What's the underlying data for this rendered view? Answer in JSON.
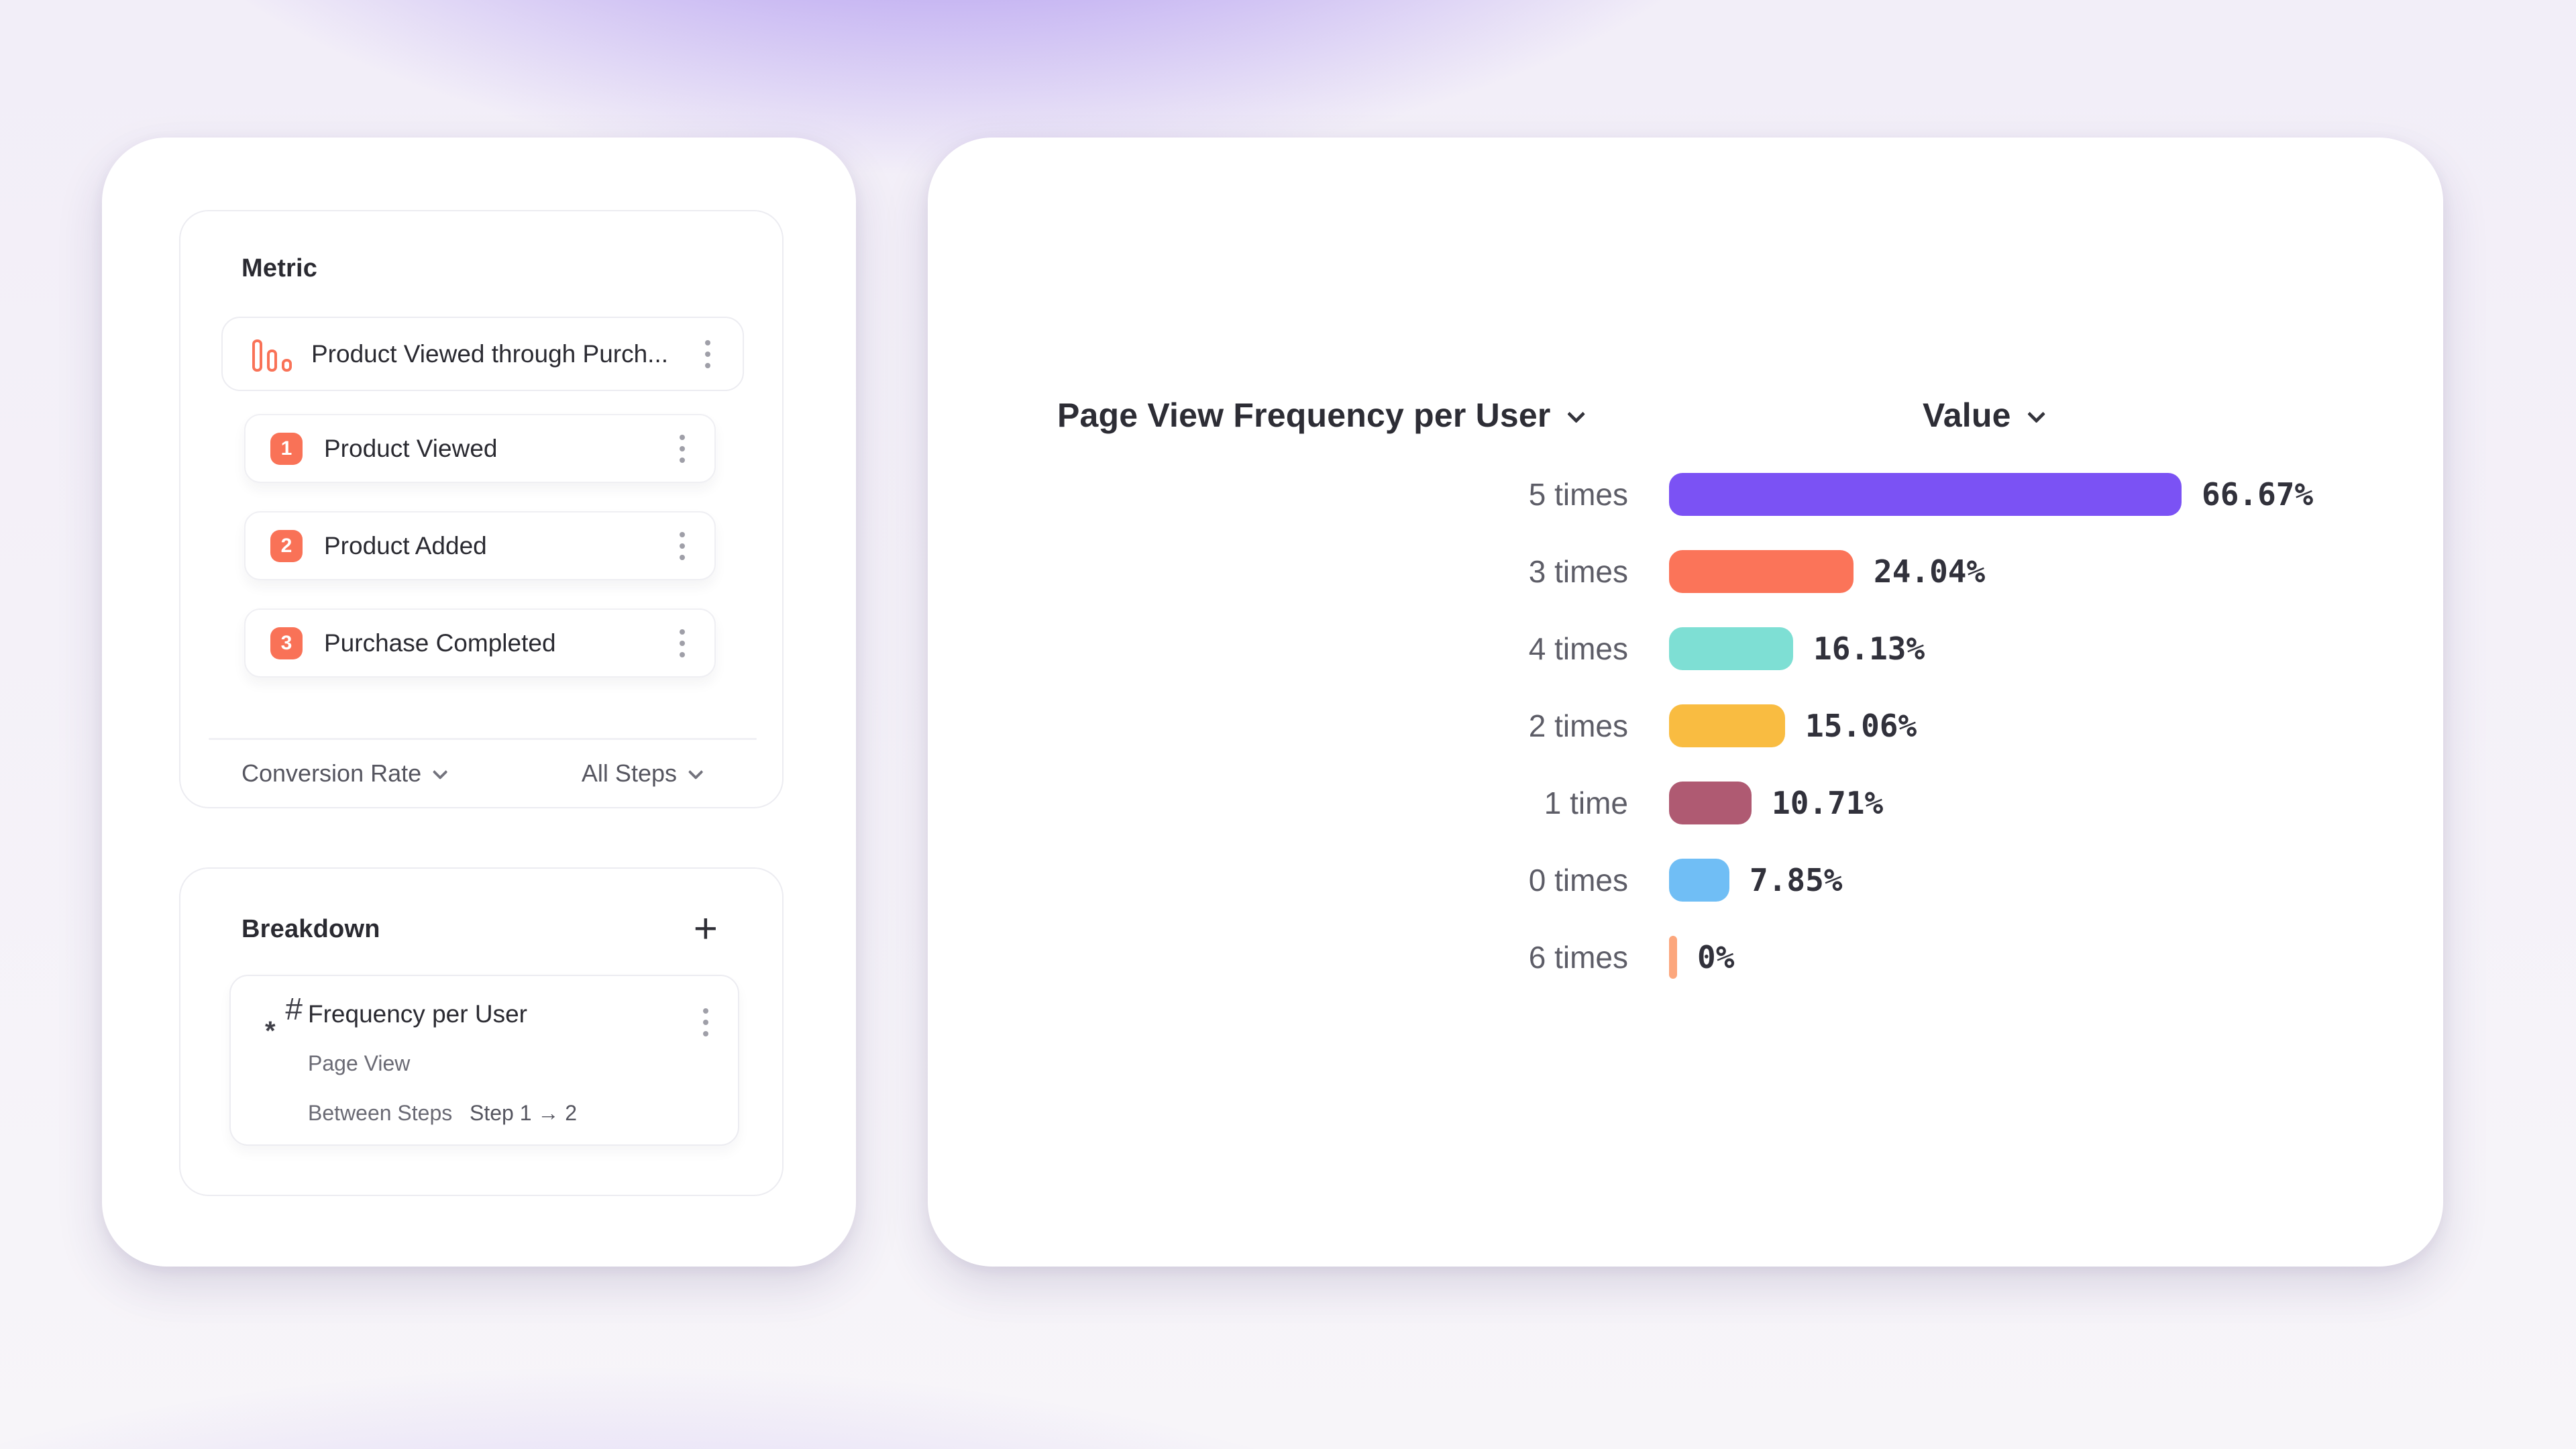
{
  "left_card": {
    "metric_panel": {
      "title": "Metric",
      "funnel": {
        "icon": "funnel-chart-icon",
        "title": "Product Viewed through Purch...",
        "accent_color": "#F97257"
      },
      "steps": [
        {
          "number": "1",
          "label": "Product Viewed"
        },
        {
          "number": "2",
          "label": "Product Added"
        },
        {
          "number": "3",
          "label": "Purchase Completed"
        }
      ],
      "footer": {
        "measurement": "Conversion Rate",
        "steps_filter": "All Steps"
      }
    },
    "breakdown_panel": {
      "title": "Breakdown",
      "add_label": "+",
      "item": {
        "icon": "numeric-property-icon",
        "title": "Frequency per User",
        "event": "Page View",
        "between_steps_label": "Between Steps",
        "steps_range": "Step 1 → 2"
      }
    }
  },
  "chart": {
    "title": "Page View Frequency per User",
    "value_header": "Value",
    "rows": [
      {
        "label": "5 times",
        "value": 66.67,
        "value_label": "66.67%",
        "color": "#7B52F4"
      },
      {
        "label": "3 times",
        "value": 24.04,
        "value_label": "24.04%",
        "color": "#FB7459"
      },
      {
        "label": "4 times",
        "value": 16.13,
        "value_label": "16.13%",
        "color": "#7EDFD4"
      },
      {
        "label": "2 times",
        "value": 15.06,
        "value_label": "15.06%",
        "color": "#F9BC41"
      },
      {
        "label": "1 time",
        "value": 10.71,
        "value_label": "10.71%",
        "color": "#AF5A72"
      },
      {
        "label": "0 times",
        "value": 7.85,
        "value_label": "7.85%",
        "color": "#70BEF5"
      },
      {
        "label": "6 times",
        "value": 0,
        "value_label": "0%",
        "color": "#FCA77D"
      }
    ]
  },
  "chart_data": {
    "type": "bar",
    "orientation": "horizontal",
    "title": "Page View Frequency per User",
    "value_axis_label": "Value",
    "unit": "%",
    "categories": [
      "5 times",
      "3 times",
      "4 times",
      "2 times",
      "1 time",
      "0 times",
      "6 times"
    ],
    "values": [
      66.67,
      24.04,
      16.13,
      15.06,
      10.71,
      7.85,
      0
    ],
    "colors": [
      "#7B52F4",
      "#FB7459",
      "#7EDFD4",
      "#F9BC41",
      "#AF5A72",
      "#70BEF5",
      "#FCA77D"
    ],
    "legend": "none",
    "grid": "off",
    "xlim": [
      0,
      70
    ]
  }
}
